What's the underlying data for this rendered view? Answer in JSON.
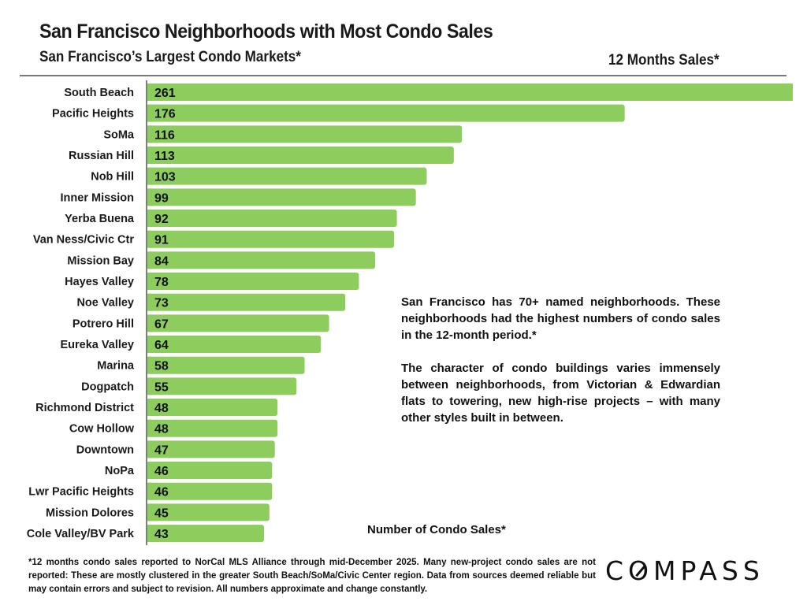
{
  "header": {
    "title": "San Francisco Neighborhoods with Most Condo Sales",
    "subtitle": "San Francisco’s Largest Condo Markets*",
    "right_label": "12 Months Sales*"
  },
  "annotation": {
    "paragraphs": [
      "San Francisco has 70+ named neighborhoods. These neighborhoods had the highest numbers of condo sales in the 12-month period.*",
      "The character of condo buildings varies immensely between neighborhoods, from Victorian & Edwardian flats to towering, new high-rise projects – with many other styles built in between."
    ]
  },
  "footer": {
    "footnote": "*12 months condo sales reported to NorCal MLS Alliance through mid-December 2025. Many new-project condo sales are not reported:  These are mostly clustered in the greater South Beach/SoMa/Civic Center region. Data from sources deemed reliable but may contain errors and subject to revision. All numbers approximate and change constantly.",
    "logo_prefix": "C",
    "logo_o": "O",
    "logo_suffix": "MPASS"
  },
  "colors": {
    "bar": "#8ccd5e",
    "axis": "#555555",
    "separator": "#7a7a7a"
  },
  "chart_data": {
    "type": "bar",
    "orientation": "horizontal",
    "title": "San Francisco Neighborhoods with Most Condo Sales",
    "subtitle": "San Francisco’s Largest Condo Markets*",
    "xlabel": "Number of Condo Sales*",
    "ylabel": "",
    "legend": "none",
    "grid": false,
    "xlim": [
      0,
      238
    ],
    "categories": [
      "South Beach",
      "Pacific Heights",
      "SoMa",
      "Russian Hill",
      "Nob Hill",
      "Inner Mission",
      "Yerba Buena",
      "Van Ness/Civic Ctr",
      "Mission Bay",
      "Hayes Valley",
      "Noe Valley",
      "Potrero Hill",
      "Eureka Valley",
      "Marina",
      "Dogpatch",
      "Richmond District",
      "Cow Hollow",
      "Downtown",
      "NoPa",
      "Lwr Pacific Heights",
      "Mission Dolores",
      "Cole Valley/BV Park"
    ],
    "values": [
      261,
      176,
      116,
      113,
      103,
      99,
      92,
      91,
      84,
      78,
      73,
      67,
      64,
      58,
      55,
      48,
      48,
      47,
      46,
      46,
      45,
      43
    ],
    "data_labels": [
      "261",
      "176",
      "116",
      "113",
      "103",
      "99",
      "92",
      "91",
      "84",
      "78",
      "73",
      "67",
      "64",
      "58",
      "55",
      "48",
      "48",
      "47",
      "46",
      "46",
      "45",
      "43"
    ]
  }
}
